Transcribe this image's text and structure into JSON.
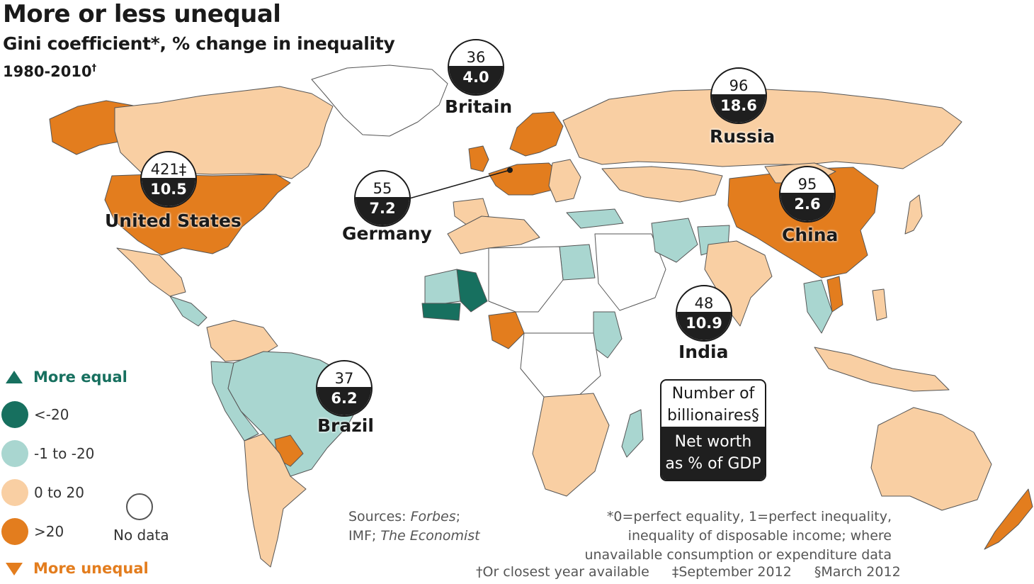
{
  "title": "More or less unequal",
  "subtitle": "Gini coefficient*, % change in inequality",
  "period": "1980-2010",
  "period_mark": "†",
  "colors": {
    "more_equal_dark": "#17705f",
    "more_equal_light": "#a9d6d0",
    "less_unequal_light": "#f9cfa3",
    "more_unequal": "#e37d1e",
    "no_data": "#ffffff",
    "bubble_dark": "#1f1f1f"
  },
  "countries": [
    {
      "name": "Britain",
      "billionaires": "36",
      "net_worth_pct_gdp": "4.0"
    },
    {
      "name": "Russia",
      "billionaires": "96",
      "net_worth_pct_gdp": "18.6"
    },
    {
      "name": "United States",
      "billionaires": "421‡",
      "net_worth_pct_gdp": "10.5"
    },
    {
      "name": "Germany",
      "billionaires": "55",
      "net_worth_pct_gdp": "7.2"
    },
    {
      "name": "China",
      "billionaires": "95",
      "net_worth_pct_gdp": "2.6"
    },
    {
      "name": "India",
      "billionaires": "48",
      "net_worth_pct_gdp": "10.9"
    },
    {
      "name": "Brazil",
      "billionaires": "37",
      "net_worth_pct_gdp": "6.2"
    }
  ],
  "key": {
    "line1": "Number of",
    "line2": "billionaires§",
    "line3": "Net worth",
    "line4": "as % of GDP"
  },
  "legend": {
    "more_equal": "More equal",
    "more_unequal": "More unequal",
    "items": [
      {
        "label": "<-20",
        "color": "#17705f"
      },
      {
        "label": "-1 to -20",
        "color": "#a9d6d0"
      },
      {
        "label": "0 to 20",
        "color": "#f9cfa3"
      },
      {
        "label": ">20",
        "color": "#e37d1e"
      }
    ],
    "no_data": "No data"
  },
  "sources": {
    "prefix": "Sources: ",
    "s1": "Forbes",
    "sep": ";",
    "s2_plain": "IMF; ",
    "s3": "The Economist"
  },
  "notes": {
    "line1": "*0=perfect equality, 1=perfect inequality,",
    "line2": "inequality of disposable income; where",
    "line3": "unavailable consumption or expenditure data"
  },
  "footnotes": {
    "f1": "†Or closest year available",
    "f2": "‡September 2012",
    "f3": "§March 2012"
  }
}
